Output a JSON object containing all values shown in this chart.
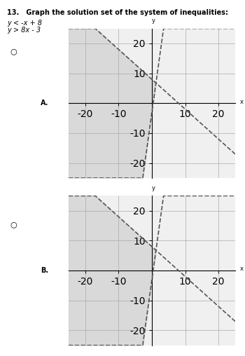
{
  "title_text": "13.   Graph the solution set of the system of inequalities:",
  "eq1": "y < -x + 8",
  "eq2": "y > 8x - 3",
  "label_A": "A.",
  "label_B": "B.",
  "xlim": [
    -25,
    25
  ],
  "ylim": [
    -25,
    25
  ],
  "xticks": [
    -20,
    -10,
    0,
    10,
    20
  ],
  "yticks": [
    -20,
    -10,
    0,
    10,
    20
  ],
  "line1_slope": -1,
  "line1_intercept": 8,
  "line2_slope": 8,
  "line2_intercept": -3,
  "shade_color": "#d0d0d0",
  "shade_alpha": 0.5,
  "line_color": "#555555",
  "line_style": "--",
  "line_width": 1.2,
  "bg_color": "#f0f0f0",
  "grid_color": "#aaaaaa",
  "fig_width": 3.5,
  "fig_height": 5.08,
  "dpi": 100
}
